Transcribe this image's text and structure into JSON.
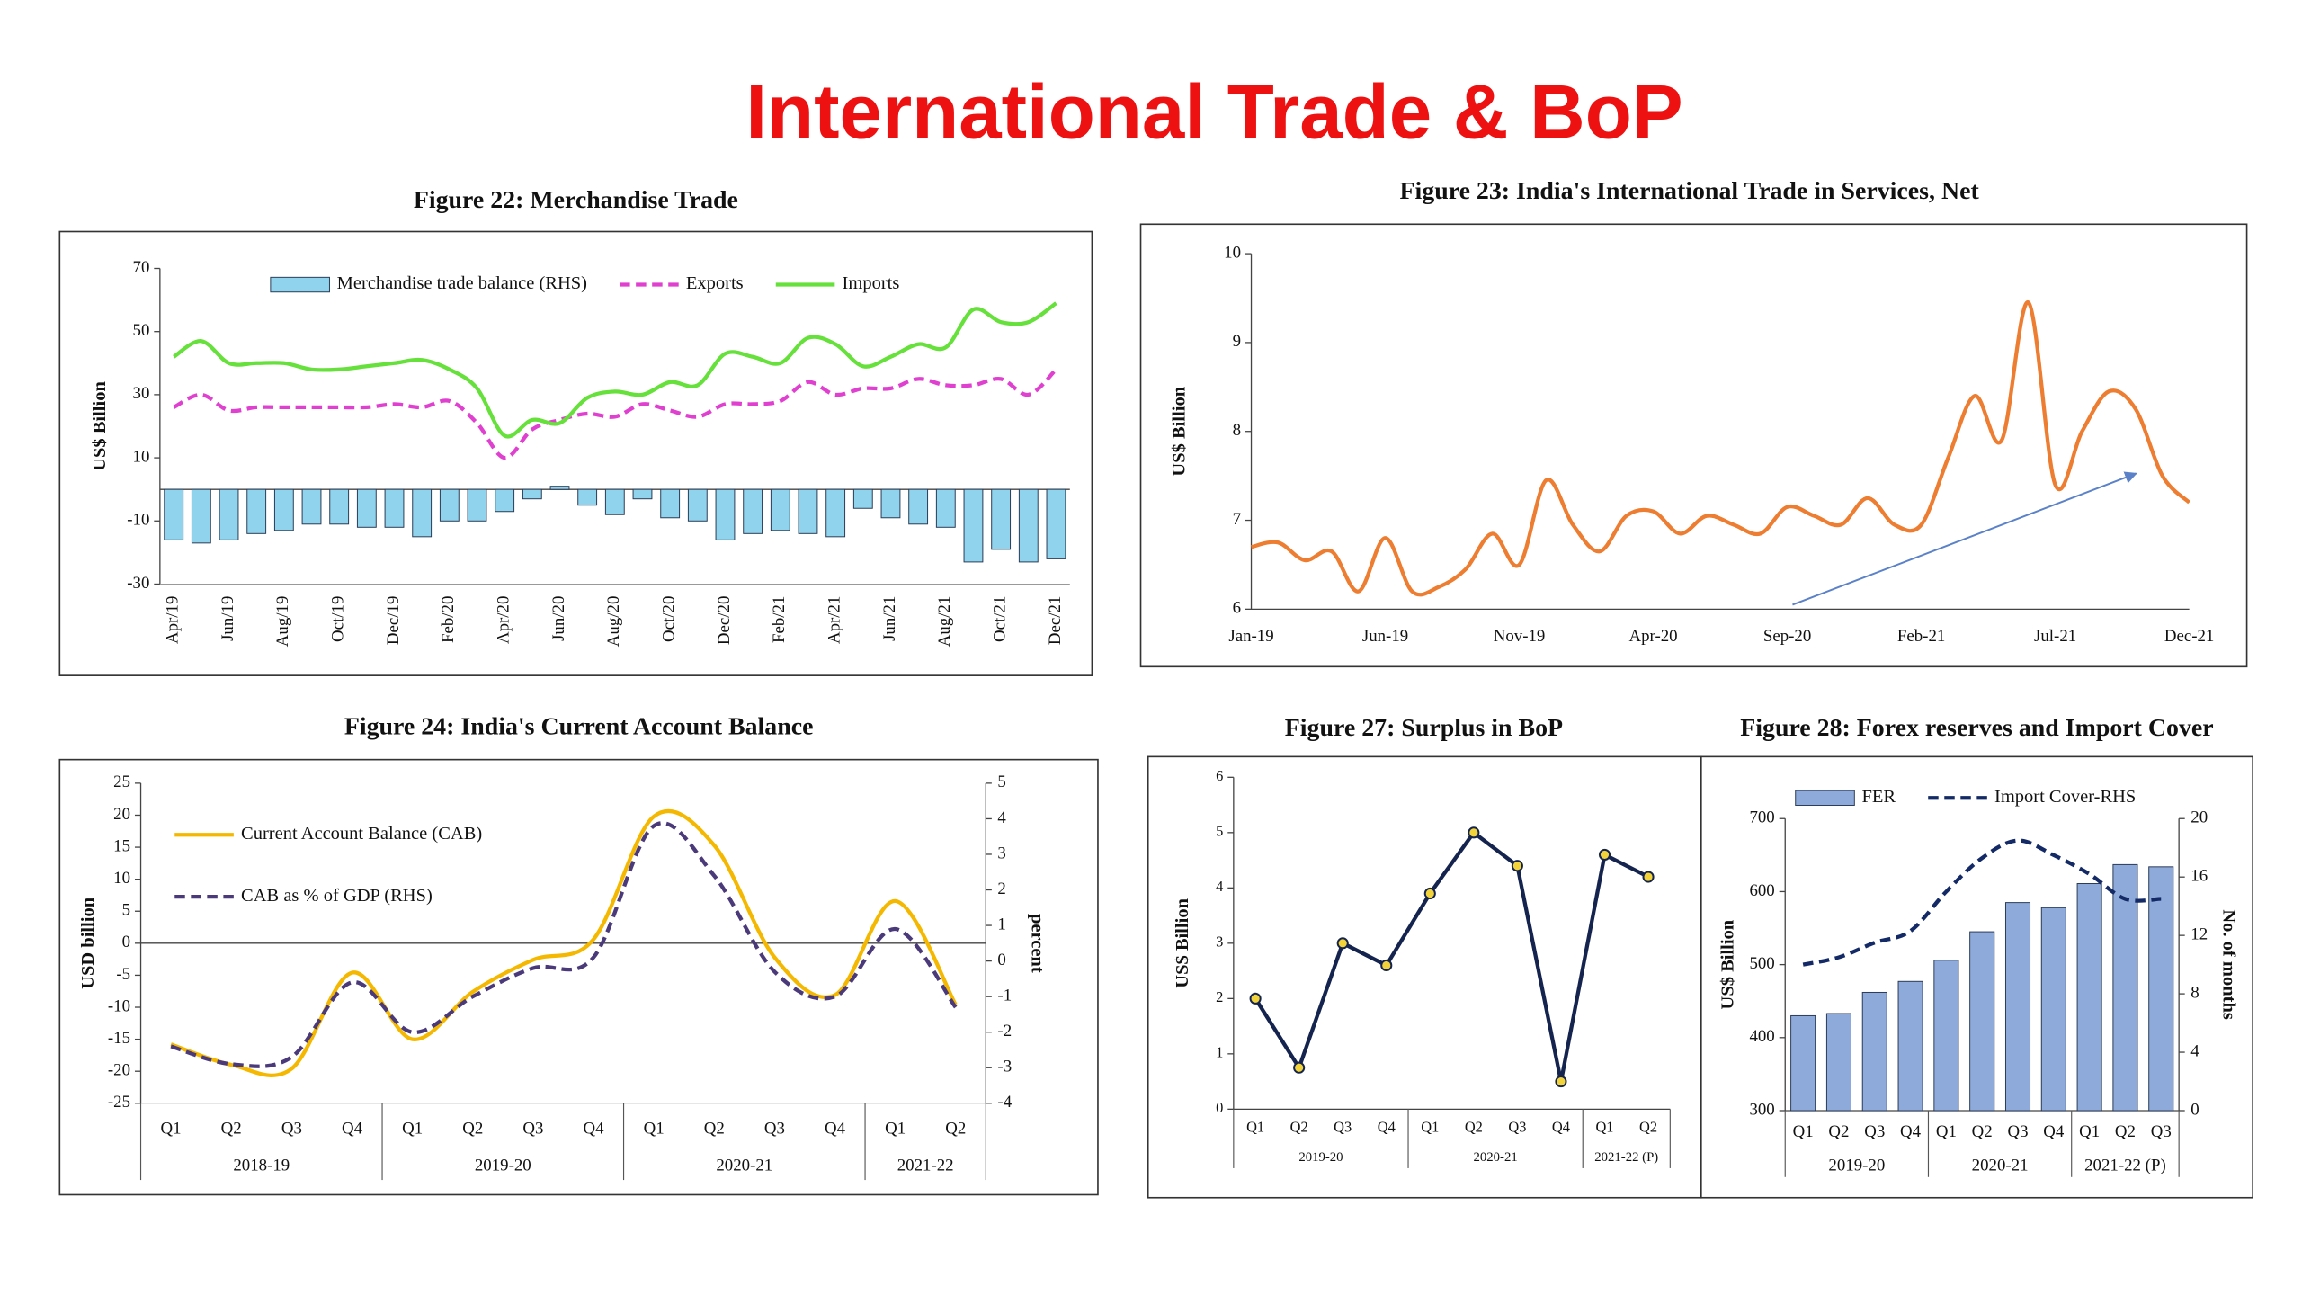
{
  "title": "International Trade & BoP",
  "chart_data": [
    {
      "type": "combo",
      "title": "Figure 22: Merchandise Trade",
      "ylabel": "US$ Billion",
      "smooth": true,
      "legend": "top",
      "categories": [
        "Apr/19",
        null,
        "Jun/19",
        null,
        "Aug/19",
        null,
        "Oct/19",
        null,
        "Dec/19",
        null,
        "Feb/20",
        null,
        "Apr/20",
        null,
        "Jun/20",
        null,
        "Aug/20",
        null,
        "Oct/20",
        null,
        "Dec/20",
        null,
        "Feb/21",
        null,
        "Apr/21",
        null,
        "Jun/21",
        null,
        "Aug/21",
        null,
        "Oct/21",
        null,
        "Dec/21"
      ],
      "ylim": [
        -30,
        70
      ],
      "yticks": [
        70,
        50,
        30,
        10,
        -10,
        -30
      ],
      "series": [
        {
          "name": "Merchandise trade balance (RHS)",
          "type": "bar",
          "color": "#8fd4ec",
          "values": [
            -16,
            -17,
            -16,
            -14,
            -13,
            -11,
            -11,
            -12,
            -12,
            -15,
            -10,
            -10,
            -7,
            -3,
            1,
            -5,
            -8,
            -3,
            -9,
            -10,
            -16,
            -14,
            -13,
            -14,
            -15,
            -6,
            -9,
            -11,
            -12,
            -23,
            -19,
            -23,
            -22
          ]
        },
        {
          "name": "Exports",
          "type": "line",
          "color": "#e040d0",
          "line_style": "dashed",
          "values": [
            26,
            30,
            25,
            26,
            26,
            26,
            26,
            26,
            27,
            26,
            28,
            21,
            10,
            19,
            22,
            24,
            23,
            27,
            25,
            23,
            27,
            27,
            28,
            34,
            30,
            32,
            32,
            35,
            33,
            33,
            35,
            30,
            38
          ]
        },
        {
          "name": "Imports",
          "type": "line",
          "color": "#66e03a",
          "line_style": "solid",
          "values": [
            42,
            47,
            40,
            40,
            40,
            38,
            38,
            39,
            40,
            41,
            38,
            32,
            17,
            22,
            21,
            29,
            31,
            30,
            34,
            33,
            43,
            42,
            40,
            48,
            46,
            39,
            42,
            46,
            45,
            57,
            53,
            53,
            59
          ]
        }
      ]
    },
    {
      "type": "line",
      "title": "Figure 23: India's International Trade in Services, Net",
      "ylabel": "US$ Billion",
      "smooth": true,
      "categories": [
        "Jan-19",
        null,
        null,
        null,
        null,
        "Jun-19",
        null,
        null,
        null,
        null,
        "Nov-19",
        null,
        null,
        null,
        null,
        "Apr-20",
        null,
        null,
        null,
        null,
        "Sep-20",
        null,
        null,
        null,
        null,
        "Feb-21",
        null,
        null,
        null,
        null,
        "Jul-21",
        null,
        null,
        null,
        null,
        "Dec-21"
      ],
      "ylim": [
        6,
        10
      ],
      "yticks": [
        6,
        7,
        8,
        9,
        10
      ],
      "series": [
        {
          "type": "line",
          "color": "#ed7d31",
          "line_style": "solid",
          "values": [
            6.7,
            6.75,
            6.55,
            6.65,
            6.2,
            6.8,
            6.2,
            6.25,
            6.45,
            6.85,
            6.5,
            7.45,
            6.95,
            6.65,
            7.05,
            7.1,
            6.85,
            7.05,
            6.95,
            6.85,
            7.15,
            7.05,
            6.95,
            7.25,
            6.95,
            6.95,
            7.7,
            8.4,
            7.9,
            9.45,
            7.4,
            8.0,
            8.45,
            8.25,
            7.5,
            7.2
          ]
        }
      ]
    },
    {
      "type": "line",
      "title": "Figure 24: India's Current Account Balance",
      "ylabel": "USD billion",
      "y2label": "percent",
      "smooth": true,
      "legend": "upper left",
      "categories": [
        "Q1",
        "Q2",
        "Q3",
        "Q4",
        "Q1",
        "Q2",
        "Q3",
        "Q4",
        "Q1",
        "Q2",
        "Q3",
        "Q4",
        "Q1",
        "Q2"
      ],
      "groups": [
        "2018-19",
        "2019-20",
        "2020-21",
        "2021-22"
      ],
      "ylim": [
        -25,
        25
      ],
      "yticks": [
        25,
        20,
        15,
        10,
        5,
        0,
        -5,
        -10,
        -15,
        -20,
        -25
      ],
      "y2lim": [
        -4,
        5
      ],
      "y2ticks": [
        5,
        4,
        3,
        2,
        1,
        0,
        -1,
        -2,
        -3,
        -4
      ],
      "series": [
        {
          "name": "Current Account Balance (CAB)",
          "type": "line",
          "color": "#f5b800",
          "line_style": "solid",
          "values": [
            -15.8,
            -19,
            -19.6,
            -4.6,
            -15,
            -7.6,
            -2.6,
            0.6,
            19.8,
            15.3,
            -2.2,
            -8.1,
            6.6,
            -9.6
          ]
        },
        {
          "name": "CAB as % of GDP (RHS)",
          "type": "line",
          "axis": "y2",
          "color": "#4b3a7a",
          "line_style": "dashed",
          "values": [
            -2.4,
            -2.9,
            -2.7,
            -0.6,
            -2.0,
            -1.0,
            -0.2,
            0.1,
            3.8,
            2.4,
            -0.3,
            -1.0,
            0.9,
            -1.3
          ]
        }
      ]
    },
    {
      "type": "line",
      "title": "Figure 27: Surplus in BoP",
      "ylabel": "US$ Billion",
      "smooth": false,
      "categories": [
        "Q1",
        "Q2",
        "Q3",
        "Q4",
        "Q1",
        "Q2",
        "Q3",
        "Q4",
        "Q1",
        "Q2"
      ],
      "groups": [
        "2019-20",
        "2020-21",
        "2021-22 (P)"
      ],
      "ylim": [
        0,
        6
      ],
      "yticks": [
        0,
        1,
        2,
        3,
        4,
        5,
        6
      ],
      "series": [
        {
          "type": "line",
          "color": "#14244e",
          "line_style": "solid",
          "marker_color": "#f2d33a",
          "values": [
            2.0,
            0.75,
            3.0,
            2.6,
            3.9,
            5.0,
            4.4,
            0.5,
            4.6,
            4.2
          ]
        }
      ]
    },
    {
      "type": "combo",
      "title": "Figure 28: Forex reserves and Import Cover",
      "ylabel": "US$ Billion",
      "y2label": "No. of months",
      "smooth": true,
      "legend": "top",
      "categories": [
        "Q1",
        "Q2",
        "Q3",
        "Q4",
        "Q1",
        "Q2",
        "Q3",
        "Q4",
        "Q1",
        "Q2",
        "Q3"
      ],
      "groups": [
        "2019-20",
        "2020-21",
        "2021-22 (P)"
      ],
      "ylim": [
        300,
        700
      ],
      "yticks": [
        300,
        400,
        500,
        600,
        700
      ],
      "y2lim": [
        0,
        20
      ],
      "y2ticks": [
        0,
        4,
        8,
        12,
        16,
        20
      ],
      "series": [
        {
          "name": "FER",
          "type": "bar",
          "color": "#8eaadb",
          "values": [
            430,
            433,
            462,
            477,
            506,
            545,
            585,
            578,
            611,
            637,
            634
          ]
        },
        {
          "name": "Import Cover-RHS",
          "type": "line",
          "axis": "y2",
          "color": "#132a66",
          "line_style": "dashed",
          "values": [
            10,
            10.5,
            11.5,
            12.3,
            15,
            17.3,
            18.5,
            17.5,
            16.2,
            14.5,
            14.5
          ]
        }
      ]
    }
  ]
}
